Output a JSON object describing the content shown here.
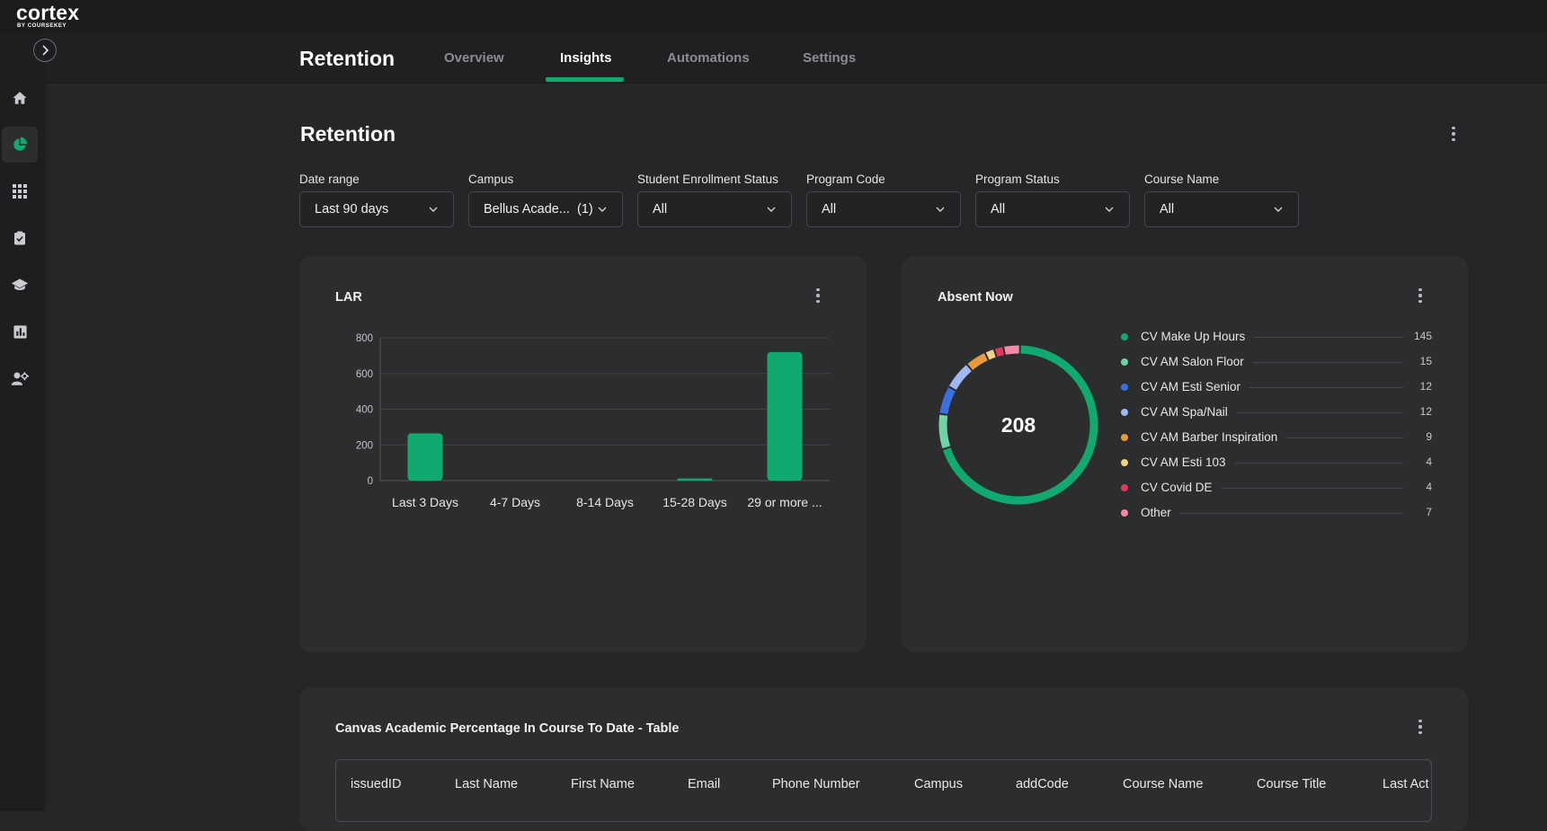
{
  "brand": {
    "name": "cortex",
    "sub": "BY COURSEKEY"
  },
  "sidebar": {
    "items": [
      {
        "icon": "home-icon"
      },
      {
        "icon": "pie-chart-icon",
        "active": true
      },
      {
        "icon": "apps-grid-icon"
      },
      {
        "icon": "clipboard-check-icon"
      },
      {
        "icon": "graduation-cap-icon"
      },
      {
        "icon": "bar-chart-icon"
      },
      {
        "icon": "user-settings-icon"
      }
    ]
  },
  "header": {
    "title": "Retention",
    "tabs": [
      {
        "label": "Overview"
      },
      {
        "label": "Insights",
        "active": true
      },
      {
        "label": "Automations"
      },
      {
        "label": "Settings"
      }
    ]
  },
  "page": {
    "title": "Retention"
  },
  "filters": [
    {
      "label": "Date range",
      "value": "Last 90 days"
    },
    {
      "label": "Campus",
      "value": "Bellus Acade...  (1)"
    },
    {
      "label": "Student Enrollment Status",
      "value": "All"
    },
    {
      "label": "Program Code",
      "value": "All"
    },
    {
      "label": "Program Status",
      "value": "All"
    },
    {
      "label": "Course Name",
      "value": "All"
    }
  ],
  "accent_color": "#10a96f",
  "chart_data": [
    {
      "type": "bar",
      "title": "LAR",
      "categories": [
        "Last 3 Days",
        "4-7 Days",
        "8-14 Days",
        "15-28 Days",
        "29 or more ..."
      ],
      "values": [
        265,
        0,
        2,
        12,
        720
      ],
      "ylim": [
        0,
        800
      ],
      "yticks": [
        "0",
        "200",
        "400",
        "600",
        "800"
      ],
      "grid": true,
      "color": "#10a96f"
    },
    {
      "type": "pie",
      "title": "Absent Now",
      "center_label": "208",
      "slices": [
        {
          "label": "CV Make Up Hours",
          "value": 145,
          "color": "#10a96f"
        },
        {
          "label": "CV AM Salon Floor",
          "value": 15,
          "color": "#6fd3a6"
        },
        {
          "label": "CV AM Esti Senior",
          "value": 12,
          "color": "#3b6fe0"
        },
        {
          "label": "CV AM Spa/Nail",
          "value": 12,
          "color": "#9fb8f5"
        },
        {
          "label": "CV AM Barber Inspiration",
          "value": 9,
          "color": "#e89a3c"
        },
        {
          "label": "CV AM Esti 103",
          "value": 4,
          "color": "#f2d18a"
        },
        {
          "label": "CV Covid DE",
          "value": 4,
          "color": "#e03a5a"
        },
        {
          "label": "Other",
          "value": 7,
          "color": "#f28aa8"
        }
      ]
    }
  ],
  "table": {
    "title": "Canvas Academic Percentage In Course To Date - Table",
    "columns": [
      "issuedID",
      "Last Name",
      "First Name",
      "Email",
      "Phone Number",
      "Campus",
      "addCode",
      "Course Name",
      "Course Title",
      "Last Act"
    ]
  }
}
